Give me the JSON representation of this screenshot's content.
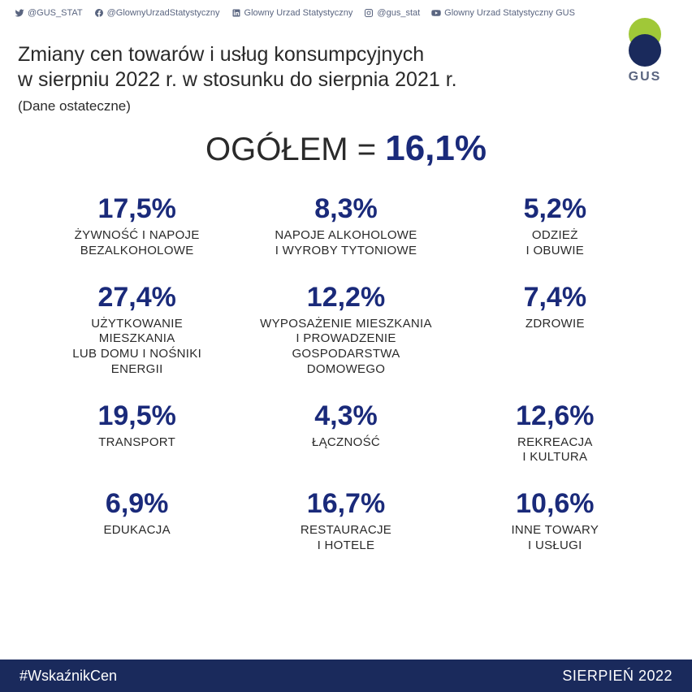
{
  "colors": {
    "navy": "#1a2a5c",
    "value_navy": "#1a2a7a",
    "text": "#2a2a2a",
    "muted": "#5a6580",
    "green": "#a0c838",
    "footer_bg": "#1a2a5c",
    "footer_text": "#ffffff",
    "bg_outer": "#d8dce3",
    "bg_inner": "#ffffff"
  },
  "typography": {
    "title_fontsize": 25,
    "subtitle_fontsize": 17,
    "headline_fontsize": 40,
    "headline_value_fontsize": 44,
    "pct_fontsize": 34,
    "label_fontsize": 15,
    "footer_fontsize": 18,
    "social_fontsize": 11
  },
  "social": [
    {
      "icon": "twitter",
      "handle": "@GUS_STAT"
    },
    {
      "icon": "facebook",
      "handle": "@GlownyUrzadStatystyczny"
    },
    {
      "icon": "linkedin",
      "handle": "Glowny Urzad Statystyczny"
    },
    {
      "icon": "instagram",
      "handle": "@gus_stat"
    },
    {
      "icon": "youtube",
      "handle": "Glowny Urzad Statystyczny GUS"
    }
  ],
  "logo": {
    "text": "GUS"
  },
  "title": {
    "line1": "Zmiany cen towarów i usług konsumpcyjnych",
    "line2": "w sierpniu 2022 r. w stosunku do sierpnia 2021 r.",
    "subtitle": "(Dane ostateczne)"
  },
  "headline": {
    "label": "OGÓŁEM",
    "eq": "=",
    "value": "16,1%"
  },
  "grid": {
    "type": "infographic",
    "columns": 3,
    "rows": 4,
    "items": [
      {
        "pct": "17,5%",
        "label": "ŻYWNOŚĆ I NAPOJE\nBEZALKOHOLOWE"
      },
      {
        "pct": "8,3%",
        "label": "NAPOJE ALKOHOLOWE\nI WYROBY TYTONIOWE"
      },
      {
        "pct": "5,2%",
        "label": "ODZIEŻ\nI OBUWIE"
      },
      {
        "pct": "27,4%",
        "label": "UŻYTKOWANIE\nMIESZKANIA\nLUB DOMU I NOŚNIKI\nENERGII"
      },
      {
        "pct": "12,2%",
        "label": "WYPOSAŻENIE MIESZKANIA\nI PROWADZENIE\nGOSPODARSTWA\nDOMOWEGO"
      },
      {
        "pct": "7,4%",
        "label": "ZDROWIE"
      },
      {
        "pct": "19,5%",
        "label": "TRANSPORT"
      },
      {
        "pct": "4,3%",
        "label": "ŁĄCZNOŚĆ"
      },
      {
        "pct": "12,6%",
        "label": "REKREACJA\nI KULTURA"
      },
      {
        "pct": "6,9%",
        "label": "EDUKACJA"
      },
      {
        "pct": "16,7%",
        "label": "RESTAURACJE\nI HOTELE"
      },
      {
        "pct": "10,6%",
        "label": "INNE TOWARY\nI USŁUGI"
      }
    ]
  },
  "footer": {
    "hashtag": "#WskaźnikCen",
    "date": "SIERPIEŃ 2022"
  }
}
